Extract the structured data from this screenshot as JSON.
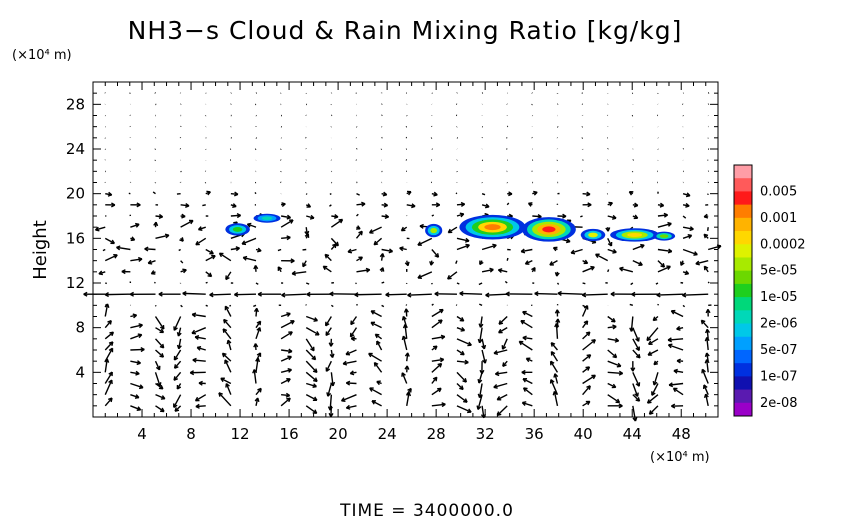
{
  "chart_data": {
    "type": "heatmap",
    "title": "NH3−s Cloud & Rain Mixing Ratio [kg/kg]",
    "ylabel": "Height",
    "y_unit": "(×10⁴ m)",
    "x_unit": "(×10⁴ m)",
    "footer": "TIME = 3400000.0",
    "xlim": [
      0,
      51
    ],
    "ylim": [
      0,
      30
    ],
    "x_ticks": [
      4,
      8,
      12,
      16,
      20,
      24,
      28,
      32,
      36,
      40,
      44,
      48
    ],
    "y_ticks": [
      4,
      8,
      12,
      16,
      20,
      24,
      28
    ],
    "x_tick_labels": [
      "4",
      "8",
      "12",
      "16",
      "20",
      "24",
      "28",
      "32",
      "36",
      "40",
      "44",
      "48"
    ],
    "y_tick_labels": [
      "4",
      "8",
      "12",
      "16",
      "20",
      "24",
      "28"
    ],
    "colorbar": {
      "levels": [
        {
          "color": "#ff9da6"
        },
        {
          "color": "#ff5a5a",
          "label": "0.005"
        },
        {
          "color": "#ff1a1a"
        },
        {
          "color": "#ff7d00",
          "label": "0.001"
        },
        {
          "color": "#ffb300"
        },
        {
          "color": "#ffd700",
          "label": "0.0002"
        },
        {
          "color": "#dff200"
        },
        {
          "color": "#a8ea00",
          "label": "5e-05"
        },
        {
          "color": "#6cd800"
        },
        {
          "color": "#1ecf1e",
          "label": "1e-05"
        },
        {
          "color": "#00d87a"
        },
        {
          "color": "#00d8b8",
          "label": "2e-06"
        },
        {
          "color": "#00c8e8"
        },
        {
          "color": "#00a0ff",
          "label": "5e-07"
        },
        {
          "color": "#0066ff"
        },
        {
          "color": "#0030e0",
          "label": "1e-07"
        },
        {
          "color": "#1010b0"
        },
        {
          "color": "#5a1ab0",
          "label": "2e-08"
        },
        {
          "color": "#9a00c8"
        }
      ]
    },
    "cloud_patches": [
      {
        "x": 11.8,
        "y": 16.8,
        "rx": 1.0,
        "ry": 0.55,
        "colors": [
          "#0030e0",
          "#00c8e8",
          "#1ecf1e"
        ]
      },
      {
        "x": 14.2,
        "y": 17.8,
        "rx": 1.1,
        "ry": 0.4,
        "colors": [
          "#0030e0",
          "#00a0ff",
          "#00d8b8"
        ]
      },
      {
        "x": 27.8,
        "y": 16.7,
        "rx": 0.7,
        "ry": 0.6,
        "colors": [
          "#0030e0",
          "#00c8e8",
          "#a8ea00"
        ]
      },
      {
        "x": 32.6,
        "y": 17.0,
        "rx": 2.7,
        "ry": 1.1,
        "colors": [
          "#0030e0",
          "#00c8e8",
          "#1ecf1e",
          "#ffd700",
          "#ff7d00"
        ]
      },
      {
        "x": 37.2,
        "y": 16.8,
        "rx": 2.2,
        "ry": 1.1,
        "colors": [
          "#0030e0",
          "#00d8b8",
          "#a8ea00",
          "#ffb300",
          "#ff1a1a"
        ]
      },
      {
        "x": 40.8,
        "y": 16.3,
        "rx": 1.0,
        "ry": 0.55,
        "colors": [
          "#0030e0",
          "#00c8e8",
          "#dff200"
        ]
      },
      {
        "x": 44.2,
        "y": 16.3,
        "rx": 2.0,
        "ry": 0.6,
        "colors": [
          "#0030e0",
          "#00c8e8",
          "#a8ea00",
          "#ffd700"
        ]
      },
      {
        "x": 46.6,
        "y": 16.2,
        "rx": 0.9,
        "ry": 0.4,
        "colors": [
          "#0030e0",
          "#00d8b8",
          "#6cd800"
        ]
      }
    ],
    "wind_arrows": "velocity vector field overlay (u, w)"
  }
}
